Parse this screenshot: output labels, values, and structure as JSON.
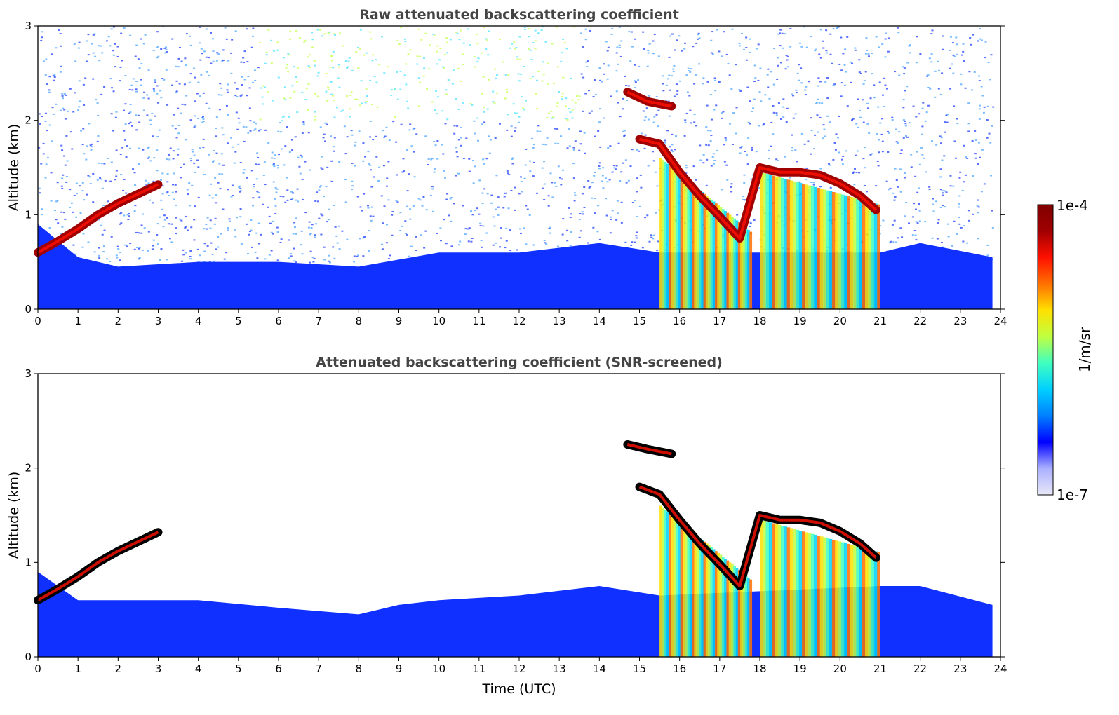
{
  "chart_data": [
    {
      "type": "heatmap",
      "title": "Raw attenuated backscattering coefficient",
      "xlabel": "",
      "ylabel": "Altitude (km)",
      "xlim": [
        0,
        24
      ],
      "ylim": [
        0,
        3
      ],
      "xticks": [
        "0",
        "1",
        "2",
        "3",
        "4",
        "5",
        "6",
        "7",
        "8",
        "9",
        "10",
        "11",
        "12",
        "13",
        "14",
        "15",
        "16",
        "17",
        "18",
        "19",
        "20",
        "21",
        "22",
        "23",
        "24"
      ],
      "yticks": [
        "0",
        "1",
        "2",
        "3"
      ],
      "colorscale": "jet",
      "features": {
        "boundary_layer": [
          {
            "t": 0,
            "top": 0.9
          },
          {
            "t": 1,
            "top": 0.55
          },
          {
            "t": 2,
            "top": 0.45
          },
          {
            "t": 4,
            "top": 0.5
          },
          {
            "t": 6,
            "top": 0.5
          },
          {
            "t": 8,
            "top": 0.45
          },
          {
            "t": 10,
            "top": 0.6
          },
          {
            "t": 12,
            "top": 0.6
          },
          {
            "t": 14,
            "top": 0.7
          },
          {
            "t": 15.5,
            "top": 0.6
          },
          {
            "t": 21,
            "top": 0.6
          },
          {
            "t": 22,
            "top": 0.7
          },
          {
            "t": 23.8,
            "top": 0.55
          }
        ],
        "cloud_layers": [
          {
            "name": "morning-rising-layer",
            "points": [
              [
                0,
                0.6
              ],
              [
                0.5,
                0.72
              ],
              [
                1,
                0.85
              ],
              [
                1.5,
                1.0
              ],
              [
                2,
                1.12
              ],
              [
                2.5,
                1.22
              ],
              [
                3,
                1.32
              ]
            ]
          },
          {
            "name": "afternoon-cloud-base",
            "points": [
              [
                15,
                1.8
              ],
              [
                15.5,
                1.75
              ],
              [
                16,
                1.45
              ],
              [
                16.5,
                1.2
              ],
              [
                17,
                0.98
              ],
              [
                17.5,
                0.75
              ],
              [
                18,
                1.5
              ],
              [
                18.5,
                1.45
              ],
              [
                19,
                1.45
              ],
              [
                19.5,
                1.42
              ],
              [
                20,
                1.33
              ],
              [
                20.5,
                1.2
              ],
              [
                20.9,
                1.05
              ]
            ]
          },
          {
            "name": "high-cloud-fragments",
            "points": [
              [
                14.7,
                2.3
              ],
              [
                15.2,
                2.2
              ],
              [
                15.8,
                2.15
              ]
            ]
          }
        ],
        "precipitation_columns": [
          [
            15.5,
            17.8
          ],
          [
            18,
            21.0
          ]
        ]
      }
    },
    {
      "type": "heatmap",
      "title": "Attenuated backscattering coefficient (SNR-screened)",
      "xlabel": "Time (UTC)",
      "ylabel": "Altitude (km)",
      "xlim": [
        0,
        24
      ],
      "ylim": [
        0,
        3
      ],
      "xticks": [
        "0",
        "1",
        "2",
        "3",
        "4",
        "5",
        "6",
        "7",
        "8",
        "9",
        "10",
        "11",
        "12",
        "13",
        "14",
        "15",
        "16",
        "17",
        "18",
        "19",
        "20",
        "21",
        "22",
        "23",
        "24"
      ],
      "yticks": [
        "0",
        "1",
        "2",
        "3"
      ],
      "colorscale": "jet",
      "features": {
        "boundary_layer": [
          {
            "t": 0,
            "top": 0.9
          },
          {
            "t": 1,
            "top": 0.6
          },
          {
            "t": 2,
            "top": 0.6
          },
          {
            "t": 4,
            "top": 0.6
          },
          {
            "t": 6,
            "top": 0.52
          },
          {
            "t": 8,
            "top": 0.45
          },
          {
            "t": 9,
            "top": 0.55
          },
          {
            "t": 10,
            "top": 0.6
          },
          {
            "t": 12,
            "top": 0.65
          },
          {
            "t": 14,
            "top": 0.75
          },
          {
            "t": 15.5,
            "top": 0.65
          },
          {
            "t": 21,
            "top": 0.75
          },
          {
            "t": 22,
            "top": 0.75
          },
          {
            "t": 23.8,
            "top": 0.55
          }
        ],
        "cloud_layers": [
          {
            "name": "morning-rising-layer",
            "points": [
              [
                0,
                0.6
              ],
              [
                0.5,
                0.72
              ],
              [
                1,
                0.85
              ],
              [
                1.5,
                1.0
              ],
              [
                2,
                1.12
              ],
              [
                2.5,
                1.22
              ],
              [
                3,
                1.32
              ]
            ]
          },
          {
            "name": "afternoon-cloud-base",
            "points": [
              [
                15,
                1.8
              ],
              [
                15.5,
                1.72
              ],
              [
                16,
                1.45
              ],
              [
                16.5,
                1.2
              ],
              [
                17,
                0.98
              ],
              [
                17.5,
                0.75
              ],
              [
                18,
                1.5
              ],
              [
                18.5,
                1.45
              ],
              [
                19,
                1.45
              ],
              [
                19.5,
                1.42
              ],
              [
                20,
                1.33
              ],
              [
                20.5,
                1.2
              ],
              [
                20.9,
                1.05
              ]
            ]
          },
          {
            "name": "high-cloud-fragments",
            "points": [
              [
                14.7,
                2.25
              ],
              [
                15.2,
                2.2
              ],
              [
                15.8,
                2.15
              ]
            ]
          }
        ],
        "precipitation_columns": [
          [
            15.5,
            17.8
          ],
          [
            18,
            21.0
          ]
        ]
      }
    }
  ],
  "colorbar": {
    "max_label": "1e-4",
    "min_label": "1e-7",
    "unit_label": "1/m/sr",
    "colors": [
      "#e8e8f8",
      "#aab0ff",
      "#0000ff",
      "#0080ff",
      "#00d0ff",
      "#40ffc0",
      "#c0ff40",
      "#ffe000",
      "#ff7000",
      "#ff1000",
      "#a00000",
      "#800000"
    ]
  }
}
